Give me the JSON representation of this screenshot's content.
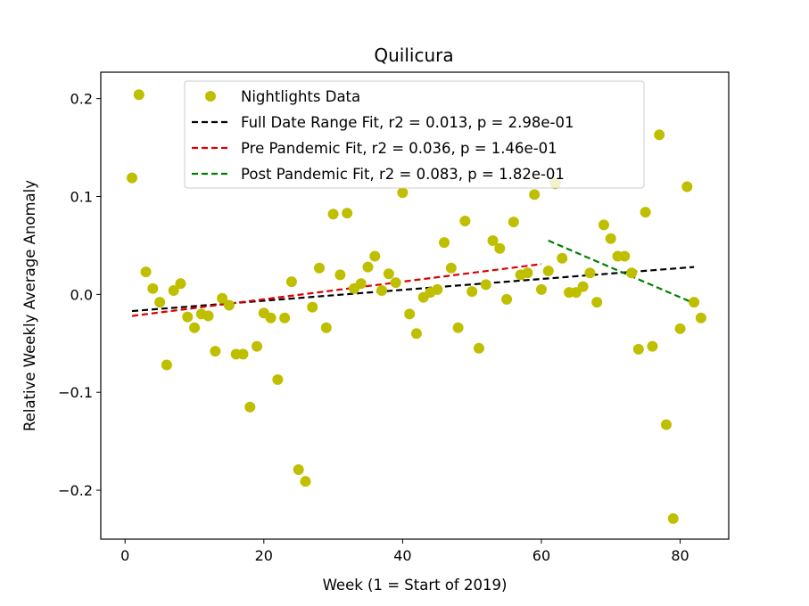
{
  "chart_data": {
    "type": "scatter",
    "title": "Quilicura",
    "xlabel": "Week (1 = Start of 2019)",
    "ylabel": "Relative Weekly Average Anomaly",
    "xlim": [
      -3.5,
      87
    ],
    "ylim": [
      -0.25,
      0.227
    ],
    "xticks": [
      0,
      20,
      40,
      60,
      80
    ],
    "xtick_labels": [
      "0",
      "20",
      "40",
      "60",
      "80"
    ],
    "yticks": [
      -0.2,
      -0.1,
      0.0,
      0.1,
      0.2
    ],
    "ytick_labels": [
      "−0.2",
      "−0.1",
      "0.0",
      "0.1",
      "0.2"
    ],
    "grid": false,
    "legend_position": "upper center",
    "series": [
      {
        "name": "Nightlights Data",
        "kind": "scatter",
        "color": "#bfbf00",
        "x": [
          1,
          2,
          3,
          4,
          5,
          6,
          7,
          8,
          9,
          10,
          11,
          12,
          13,
          14,
          15,
          16,
          17,
          18,
          19,
          20,
          21,
          22,
          23,
          24,
          25,
          26,
          27,
          28,
          29,
          30,
          31,
          32,
          33,
          34,
          35,
          36,
          37,
          38,
          39,
          40,
          41,
          42,
          43,
          44,
          45,
          46,
          47,
          48,
          49,
          50,
          51,
          52,
          53,
          54,
          55,
          56,
          57,
          58,
          59,
          60,
          61,
          62,
          63,
          64,
          65,
          66,
          67,
          68,
          69,
          70,
          71,
          72,
          73,
          74,
          75,
          76,
          77,
          78,
          79,
          80,
          81,
          82,
          83
        ],
        "y": [
          0.119,
          0.204,
          0.023,
          0.006,
          -0.008,
          -0.072,
          0.004,
          0.011,
          -0.023,
          -0.034,
          -0.02,
          -0.022,
          -0.058,
          -0.004,
          -0.011,
          -0.061,
          -0.061,
          -0.115,
          -0.053,
          -0.019,
          -0.024,
          -0.087,
          -0.024,
          0.013,
          -0.179,
          -0.191,
          -0.013,
          0.027,
          -0.034,
          0.082,
          0.02,
          0.083,
          0.006,
          0.011,
          0.028,
          0.039,
          0.004,
          0.021,
          0.012,
          0.104,
          -0.02,
          -0.04,
          -0.003,
          0.002,
          0.005,
          0.053,
          0.027,
          -0.034,
          0.075,
          0.003,
          -0.055,
          0.01,
          0.055,
          0.047,
          -0.005,
          0.074,
          0.02,
          0.022,
          0.102,
          0.005,
          0.024,
          0.113,
          0.037,
          0.002,
          0.002,
          0.008,
          0.022,
          -0.008,
          0.071,
          0.057,
          0.039,
          0.039,
          0.022,
          -0.056,
          0.084,
          -0.053,
          0.163,
          -0.133,
          -0.229,
          -0.035,
          0.11,
          -0.008,
          -0.024
        ]
      },
      {
        "name": "Full Date Range Fit, r2 = 0.013, p = 2.98e-01",
        "kind": "line",
        "style": "dashed",
        "color": "#000000",
        "x": [
          1,
          82
        ],
        "y": [
          -0.017,
          0.028
        ]
      },
      {
        "name": "Pre Pandemic Fit, r2 = 0.036, p = 1.46e-01",
        "kind": "line",
        "style": "dashed",
        "color": "#dd0000",
        "x": [
          1,
          60
        ],
        "y": [
          -0.022,
          0.031
        ]
      },
      {
        "name": "Post Pandemic Fit, r2 = 0.083, p = 1.82e-01",
        "kind": "line",
        "style": "dashed",
        "color": "#007f00",
        "x": [
          61,
          82
        ],
        "y": [
          0.055,
          -0.009
        ]
      }
    ]
  }
}
